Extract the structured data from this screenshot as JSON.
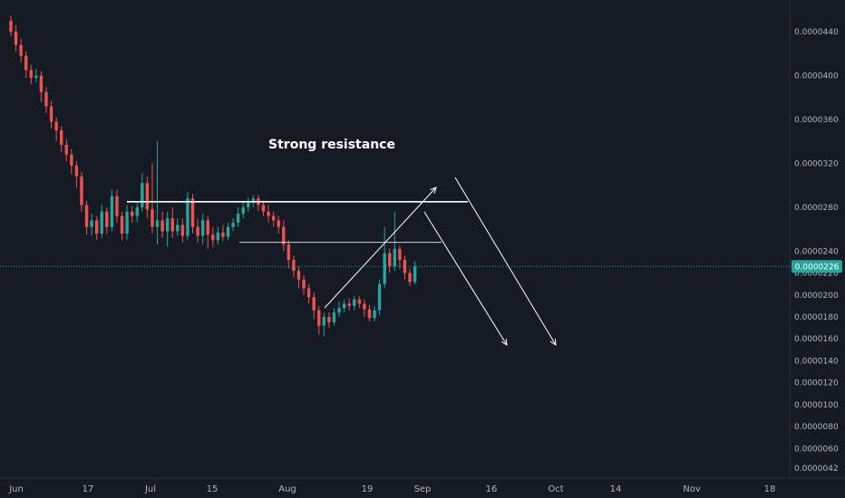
{
  "colors": {
    "background": "#161a25",
    "up": "#26a69a",
    "down": "#ef5350",
    "axis_text": "#b2b5be",
    "drawing": "#ffffff",
    "current_price": "#26a69a"
  },
  "chart_data": {
    "type": "candlestick",
    "title": "",
    "xlabel": "",
    "ylabel": "",
    "ylim": [
      3.3e-06,
      4.69e-05
    ],
    "y_ticks": [
      "0.0000440",
      "0.0000400",
      "0.0000360",
      "0.0000320",
      "0.0000280",
      "0.0000240",
      "0.0000220",
      "0.0000200",
      "0.0000180",
      "0.0000160",
      "0.0000140",
      "0.0000120",
      "0.0000100",
      "0.0000080",
      "0.0000060",
      "0.0000042"
    ],
    "x_ticks": [
      "Jun",
      "17",
      "Jul",
      "15",
      "Aug",
      "19",
      "Sep",
      "16",
      "Oct",
      "14",
      "Nov",
      "18"
    ],
    "current_price": "0.0000226",
    "annotation": "Strong resistance",
    "candles": [
      [
        4.5e-05,
        4.4e-05,
        4.55e-05,
        4.36e-05
      ],
      [
        4.4e-05,
        4.28e-05,
        4.46e-05,
        4.22e-05
      ],
      [
        4.28e-05,
        4.18e-05,
        4.34e-05,
        4.12e-05
      ],
      [
        4.18e-05,
        4.05e-05,
        4.22e-05,
        3.98e-05
      ],
      [
        4.05e-05,
        3.98e-05,
        4.1e-05,
        3.92e-05
      ],
      [
        3.98e-05,
        4e-05,
        4.06e-05,
        3.94e-05
      ],
      [
        4e-05,
        3.85e-05,
        4.04e-05,
        3.76e-05
      ],
      [
        3.85e-05,
        3.72e-05,
        3.9e-05,
        3.66e-05
      ],
      [
        3.72e-05,
        3.58e-05,
        3.77e-05,
        3.52e-05
      ],
      [
        3.58e-05,
        3.5e-05,
        3.62e-05,
        3.4e-05
      ],
      [
        3.5e-05,
        3.37e-05,
        3.54e-05,
        3.3e-05
      ],
      [
        3.37e-05,
        3.28e-05,
        3.42e-05,
        3.22e-05
      ],
      [
        3.28e-05,
        3.18e-05,
        3.33e-05,
        3.1e-05
      ],
      [
        3.18e-05,
        3.08e-05,
        3.22e-05,
        2.98e-05
      ],
      [
        3.08e-05,
        2.82e-05,
        3.12e-05,
        2.76e-05
      ],
      [
        2.82e-05,
        2.62e-05,
        2.86e-05,
        2.55e-05
      ],
      [
        2.62e-05,
        2.68e-05,
        2.74e-05,
        2.54e-05
      ],
      [
        2.68e-05,
        2.56e-05,
        2.72e-05,
        2.5e-05
      ],
      [
        2.56e-05,
        2.76e-05,
        2.82e-05,
        2.52e-05
      ],
      [
        2.76e-05,
        2.62e-05,
        2.8e-05,
        2.56e-05
      ],
      [
        2.62e-05,
        2.9e-05,
        2.96e-05,
        2.58e-05
      ],
      [
        2.9e-05,
        2.72e-05,
        2.96e-05,
        2.66e-05
      ],
      [
        2.72e-05,
        2.56e-05,
        2.76e-05,
        2.5e-05
      ],
      [
        2.56e-05,
        2.76e-05,
        2.82e-05,
        2.5e-05
      ],
      [
        2.76e-05,
        2.72e-05,
        2.81e-05,
        2.66e-05
      ],
      [
        2.72e-05,
        2.8e-05,
        2.84e-05,
        2.66e-05
      ],
      [
        2.8e-05,
        3.02e-05,
        3.11e-05,
        2.76e-05
      ],
      [
        3.02e-05,
        2.78e-05,
        3.08e-05,
        2.7e-05
      ],
      [
        2.78e-05,
        2.62e-05,
        3.2e-05,
        2.56e-05
      ],
      [
        2.62e-05,
        2.68e-05,
        3.4e-05,
        2.46e-05
      ],
      [
        2.68e-05,
        2.58e-05,
        2.76e-05,
        2.52e-05
      ],
      [
        2.58e-05,
        2.7e-05,
        2.76e-05,
        2.44e-05
      ],
      [
        2.7e-05,
        2.58e-05,
        2.8e-05,
        2.52e-05
      ],
      [
        2.58e-05,
        2.64e-05,
        2.7e-05,
        2.54e-05
      ],
      [
        2.64e-05,
        2.54e-05,
        2.7e-05,
        2.48e-05
      ],
      [
        2.54e-05,
        2.88e-05,
        2.94e-05,
        2.5e-05
      ],
      [
        2.88e-05,
        2.62e-05,
        2.92e-05,
        2.56e-05
      ],
      [
        2.62e-05,
        2.54e-05,
        2.7e-05,
        2.48e-05
      ],
      [
        2.54e-05,
        2.68e-05,
        2.74e-05,
        2.46e-05
      ],
      [
        2.68e-05,
        2.55e-05,
        2.72e-05,
        2.42e-05
      ],
      [
        2.55e-05,
        2.5e-05,
        2.62e-05,
        2.44e-05
      ],
      [
        2.5e-05,
        2.57e-05,
        2.62e-05,
        2.46e-05
      ],
      [
        2.57e-05,
        2.53e-05,
        2.64e-05,
        2.49e-05
      ],
      [
        2.53e-05,
        2.62e-05,
        2.66e-05,
        2.5e-05
      ],
      [
        2.62e-05,
        2.66e-05,
        2.7e-05,
        2.58e-05
      ],
      [
        2.66e-05,
        2.74e-05,
        2.8e-05,
        2.62e-05
      ],
      [
        2.74e-05,
        2.8e-05,
        2.85e-05,
        2.7e-05
      ],
      [
        2.8e-05,
        2.84e-05,
        2.89e-05,
        2.76e-05
      ],
      [
        2.84e-05,
        2.88e-05,
        2.91e-05,
        2.8e-05
      ],
      [
        2.88e-05,
        2.82e-05,
        2.91e-05,
        2.77e-05
      ],
      [
        2.82e-05,
        2.76e-05,
        2.86e-05,
        2.72e-05
      ],
      [
        2.76e-05,
        2.72e-05,
        2.82e-05,
        2.66e-05
      ],
      [
        2.72e-05,
        2.68e-05,
        2.76e-05,
        2.62e-05
      ],
      [
        2.68e-05,
        2.62e-05,
        2.72e-05,
        2.56e-05
      ],
      [
        2.62e-05,
        2.46e-05,
        2.68e-05,
        2.4e-05
      ],
      [
        2.46e-05,
        2.32e-05,
        2.5e-05,
        2.24e-05
      ],
      [
        2.32e-05,
        2.22e-05,
        2.36e-05,
        2.16e-05
      ],
      [
        2.22e-05,
        2.14e-05,
        2.26e-05,
        2.06e-05
      ],
      [
        2.14e-05,
        2.06e-05,
        2.18e-05,
        2e-05
      ],
      [
        2.06e-05,
        1.98e-05,
        2.1e-05,
        1.92e-05
      ],
      [
        1.98e-05,
        1.86e-05,
        2.02e-05,
        1.78e-05
      ],
      [
        1.86e-05,
        1.72e-05,
        1.9e-05,
        1.64e-05
      ],
      [
        1.72e-05,
        1.8e-05,
        1.84e-05,
        1.62e-05
      ],
      [
        1.8e-05,
        1.75e-05,
        1.84e-05,
        1.7e-05
      ],
      [
        1.75e-05,
        1.84e-05,
        1.88e-05,
        1.72e-05
      ],
      [
        1.84e-05,
        1.88e-05,
        1.94e-05,
        1.8e-05
      ],
      [
        1.88e-05,
        1.92e-05,
        1.96e-05,
        1.84e-05
      ],
      [
        1.92e-05,
        1.9e-05,
        1.97e-05,
        1.86e-05
      ],
      [
        1.9e-05,
        1.96e-05,
        1.99e-05,
        1.86e-05
      ],
      [
        1.96e-05,
        1.92e-05,
        1.99e-05,
        1.88e-05
      ],
      [
        1.92e-05,
        1.87e-05,
        1.96e-05,
        1.8e-05
      ],
      [
        1.87e-05,
        1.79e-05,
        1.91e-05,
        1.76e-05
      ],
      [
        1.79e-05,
        1.86e-05,
        1.9e-05,
        1.76e-05
      ],
      [
        1.86e-05,
        2.1e-05,
        2.14e-05,
        1.82e-05
      ],
      [
        2.1e-05,
        2.38e-05,
        2.62e-05,
        2.06e-05
      ],
      [
        2.38e-05,
        2.26e-05,
        2.42e-05,
        2.2e-05
      ],
      [
        2.26e-05,
        2.42e-05,
        2.76e-05,
        2.22e-05
      ],
      [
        2.42e-05,
        2.32e-05,
        2.45e-05,
        2.24e-05
      ],
      [
        2.32e-05,
        2.2e-05,
        2.36e-05,
        2.14e-05
      ],
      [
        2.2e-05,
        2.12e-05,
        2.24e-05,
        2.08e-05
      ],
      [
        2.12e-05,
        2.26e-05,
        2.31e-05,
        2.1e-05
      ]
    ]
  }
}
